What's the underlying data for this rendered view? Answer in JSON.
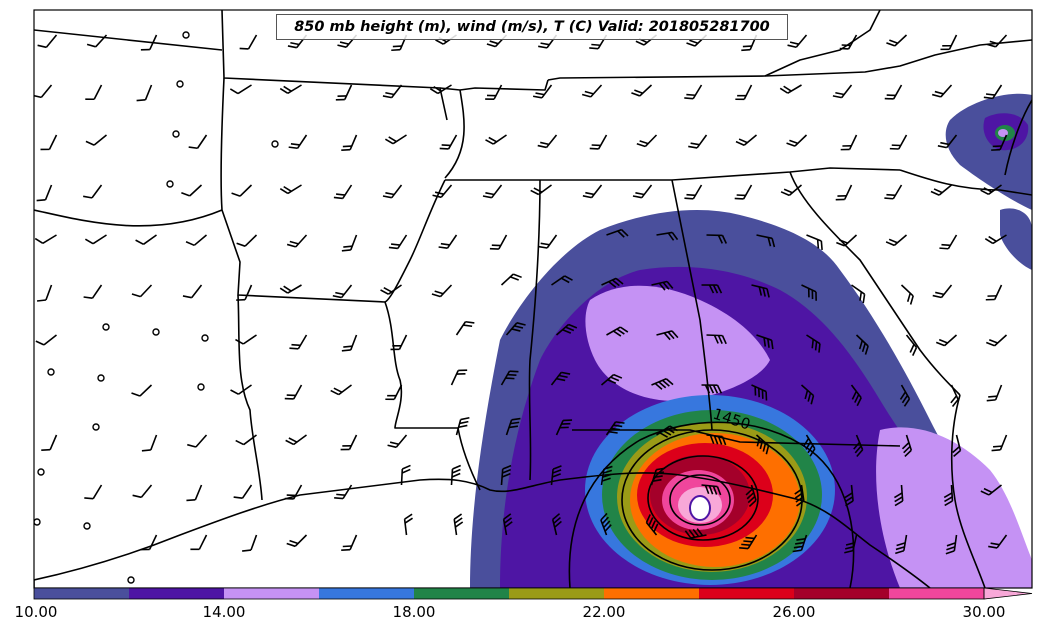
{
  "title": "850 mb height (m), wind (m/s), T (C) Valid: 201805281700",
  "contour_label": "1450",
  "colorbar": {
    "tick_labels": [
      "10.00",
      "14.00",
      "18.00",
      "22.00",
      "26.00",
      "30.00"
    ],
    "colors": [
      "#4a4f9c",
      "#4e15a4",
      "#c592f4",
      "#3777de",
      "#218448",
      "#9a9b17",
      "#fe6f00",
      "#dc001a",
      "#a4002a",
      "#f0469c",
      "#f8a8d8"
    ]
  },
  "colors": {
    "state_lines": "#000000",
    "wind_barbs": "#000000"
  }
}
